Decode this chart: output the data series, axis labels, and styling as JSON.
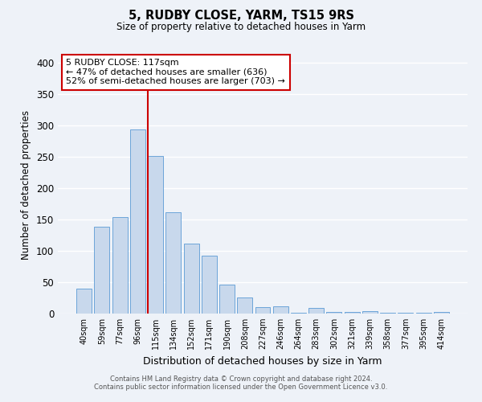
{
  "title": "5, RUDBY CLOSE, YARM, TS15 9RS",
  "subtitle": "Size of property relative to detached houses in Yarm",
  "xlabel": "Distribution of detached houses by size in Yarm",
  "ylabel": "Number of detached properties",
  "bar_color": "#c8d8ec",
  "bar_edge_color": "#5b9bd5",
  "background_color": "#eef2f8",
  "grid_color": "#ffffff",
  "categories": [
    "40sqm",
    "59sqm",
    "77sqm",
    "96sqm",
    "115sqm",
    "134sqm",
    "152sqm",
    "171sqm",
    "190sqm",
    "208sqm",
    "227sqm",
    "246sqm",
    "264sqm",
    "283sqm",
    "302sqm",
    "321sqm",
    "339sqm",
    "358sqm",
    "377sqm",
    "395sqm",
    "414sqm"
  ],
  "values": [
    40,
    139,
    154,
    293,
    251,
    161,
    112,
    92,
    46,
    25,
    10,
    11,
    1,
    9,
    2,
    2,
    4,
    1,
    1,
    1,
    3
  ],
  "ylim": [
    0,
    410
  ],
  "yticks": [
    0,
    50,
    100,
    150,
    200,
    250,
    300,
    350,
    400
  ],
  "vline_index": 4,
  "vline_color": "#cc0000",
  "annotation_title": "5 RUDBY CLOSE: 117sqm",
  "annotation_line1": "← 47% of detached houses are smaller (636)",
  "annotation_line2": "52% of semi-detached houses are larger (703) →",
  "annotation_box_edge": "#cc0000",
  "footer1": "Contains HM Land Registry data © Crown copyright and database right 2024.",
  "footer2": "Contains public sector information licensed under the Open Government Licence v3.0."
}
